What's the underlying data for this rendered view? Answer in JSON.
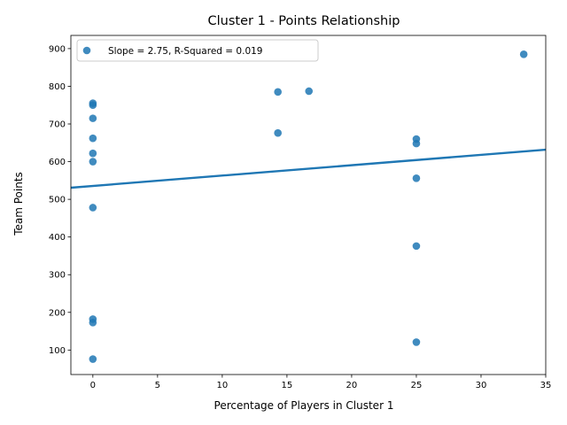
{
  "chart_data": {
    "type": "scatter",
    "title": "Cluster 1 - Points Relationship",
    "xlabel": "Percentage of Players in Cluster 1",
    "ylabel": "Team Points",
    "xlim": [
      -1.7,
      35
    ],
    "ylim": [
      35,
      935
    ],
    "xticks": [
      0,
      5,
      10,
      15,
      20,
      25,
      30,
      35
    ],
    "yticks": [
      100,
      200,
      300,
      400,
      500,
      600,
      700,
      800,
      900
    ],
    "grid": false,
    "legend_position": "top-left",
    "series": [
      {
        "name": "Slope = 2.75, R-Squared = 0.019",
        "color": "#1f77b4",
        "points": [
          {
            "x": 0,
            "y": 755
          },
          {
            "x": 0,
            "y": 750
          },
          {
            "x": 0,
            "y": 715
          },
          {
            "x": 0,
            "y": 662
          },
          {
            "x": 0,
            "y": 622
          },
          {
            "x": 0,
            "y": 600
          },
          {
            "x": 0,
            "y": 478
          },
          {
            "x": 0,
            "y": 182
          },
          {
            "x": 0,
            "y": 173
          },
          {
            "x": 0,
            "y": 76
          },
          {
            "x": 14.3,
            "y": 785
          },
          {
            "x": 14.3,
            "y": 676
          },
          {
            "x": 16.7,
            "y": 787
          },
          {
            "x": 25,
            "y": 660
          },
          {
            "x": 25,
            "y": 648
          },
          {
            "x": 25,
            "y": 556
          },
          {
            "x": 25,
            "y": 376
          },
          {
            "x": 25,
            "y": 121
          },
          {
            "x": 33.3,
            "y": 885
          }
        ]
      }
    ],
    "regression": {
      "slope": 2.75,
      "intercept": 535.5,
      "color": "#1f77b4"
    }
  }
}
